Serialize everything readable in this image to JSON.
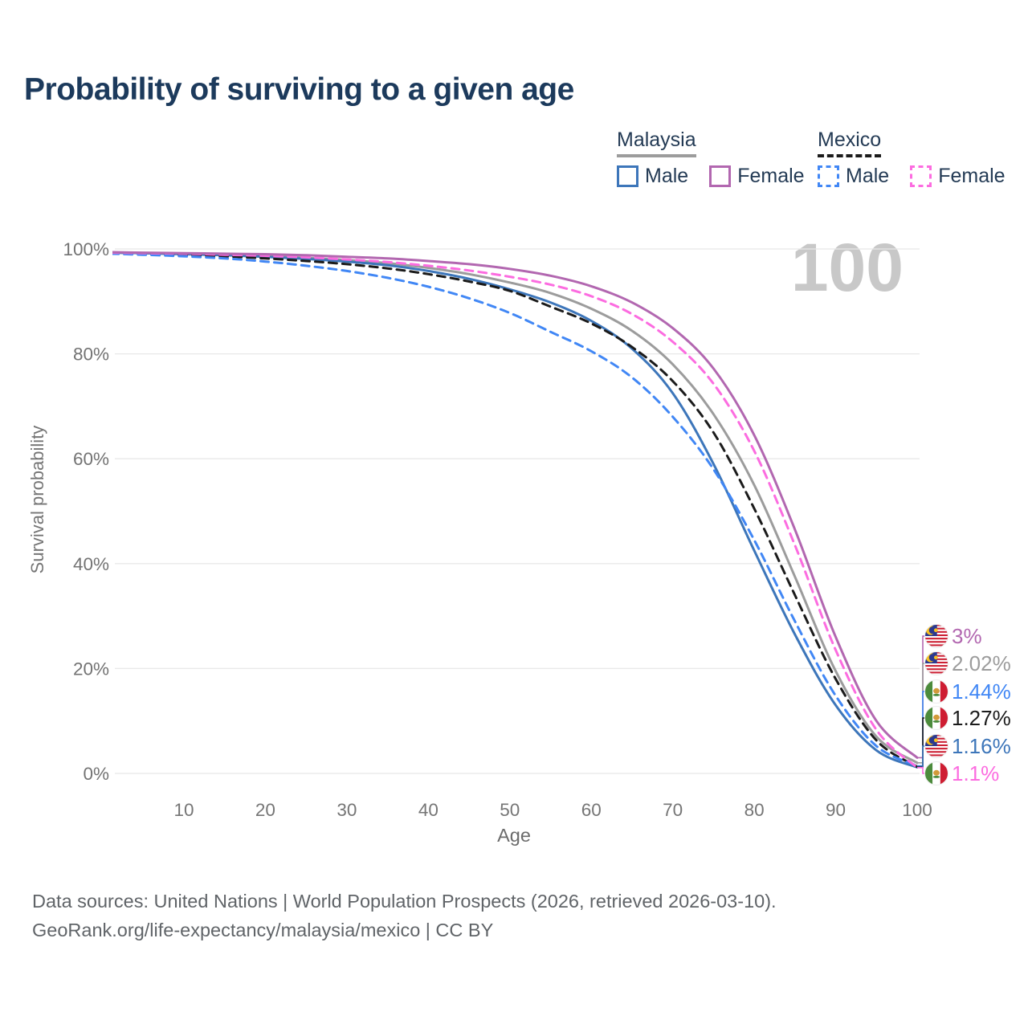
{
  "title": "Probability of surviving to a given age",
  "watermark": "100",
  "legend": {
    "groups": [
      {
        "label": "Malaysia",
        "underline_style": "solid",
        "underline_color": "#9c9c9c",
        "items": [
          {
            "label": "Male",
            "color": "#3d76ba",
            "dash": false
          },
          {
            "label": "Female",
            "color": "#b267b0",
            "dash": false
          }
        ]
      },
      {
        "label": "Mexico",
        "underline_style": "dashed",
        "underline_color": "#1b1b1b",
        "items": [
          {
            "label": "Male",
            "color": "#4187f5",
            "dash": true
          },
          {
            "label": "Female",
            "color": "#fc6ce0",
            "dash": true
          }
        ]
      }
    ]
  },
  "y_axis": {
    "label": "Survival probability",
    "ticks": [
      "100%",
      "80%",
      "60%",
      "40%",
      "20%",
      "0%"
    ]
  },
  "x_axis": {
    "label": "Age",
    "ticks": [
      "10",
      "20",
      "30",
      "40",
      "50",
      "60",
      "70",
      "80",
      "90",
      "100"
    ]
  },
  "footer": {
    "line1": "Data sources: United Nations | World Population Prospects (2026, retrieved 2026-03-10).",
    "line2": "GeoRank.org/life-expectancy/malaysia/mexico | CC BY"
  },
  "chart_data": {
    "type": "line",
    "title": "Probability of surviving to a given age",
    "xlabel": "Age",
    "ylabel": "Survival probability",
    "xlim": [
      1,
      100
    ],
    "ylim": [
      0,
      100
    ],
    "grid": "horizontal",
    "legend_position": "top-right",
    "x": [
      1,
      5,
      10,
      15,
      20,
      25,
      30,
      35,
      40,
      45,
      50,
      55,
      60,
      65,
      70,
      75,
      80,
      85,
      90,
      95,
      100
    ],
    "series": [
      {
        "name": "Malaysia — All",
        "country": "Malaysia",
        "group": "all",
        "color": "#9c9c9c",
        "style": "solid",
        "end_label": "2.02%",
        "values": [
          99.3,
          99.2,
          99.1,
          98.9,
          98.7,
          98.3,
          97.9,
          97.3,
          96.4,
          95.2,
          93.6,
          91.6,
          88.6,
          84.4,
          78.0,
          68.5,
          55.0,
          37.5,
          19.5,
          7.0,
          2.02
        ]
      },
      {
        "name": "Malaysia — Male",
        "country": "Malaysia",
        "group": "male",
        "color": "#3d76ba",
        "style": "solid",
        "end_label": "1.16%",
        "values": [
          99.3,
          99.2,
          99.0,
          98.8,
          98.5,
          98.1,
          97.6,
          96.9,
          95.8,
          94.3,
          92.3,
          89.8,
          86.3,
          81.0,
          72.5,
          59.0,
          42.5,
          26.5,
          13.0,
          4.4,
          1.16
        ]
      },
      {
        "name": "Mexico — All",
        "country": "Mexico",
        "group": "all",
        "color": "#1b1b1b",
        "style": "dashed",
        "end_label": "1.27%",
        "values": [
          99.2,
          99.1,
          98.9,
          98.6,
          98.2,
          97.7,
          97.1,
          96.3,
          95.2,
          93.8,
          92.0,
          89.0,
          85.8,
          81.3,
          74.8,
          65.0,
          50.5,
          34.0,
          18.0,
          6.3,
          1.27
        ]
      },
      {
        "name": "Mexico — Male",
        "country": "Mexico",
        "group": "male",
        "color": "#4187f5",
        "style": "dashed",
        "end_label": "1.44%",
        "values": [
          99.1,
          98.9,
          98.6,
          98.2,
          97.6,
          96.8,
          95.8,
          94.5,
          92.8,
          90.6,
          87.8,
          84.2,
          80.5,
          75.5,
          68.0,
          58.0,
          44.5,
          29.0,
          14.8,
          5.2,
          1.44
        ]
      },
      {
        "name": "Mexico — Female",
        "country": "Mexico",
        "group": "female",
        "color": "#fc6ce0",
        "style": "dashed",
        "end_label": "1.1%",
        "values": [
          99.3,
          99.2,
          99.1,
          98.9,
          98.7,
          98.4,
          98.0,
          97.5,
          96.8,
          95.9,
          94.7,
          93.2,
          91.0,
          87.6,
          82.3,
          74.3,
          61.5,
          43.5,
          23.5,
          8.3,
          1.1
        ]
      },
      {
        "name": "Malaysia — Female",
        "country": "Malaysia",
        "group": "female",
        "color": "#b267b0",
        "style": "solid",
        "end_label": "3%",
        "values": [
          99.4,
          99.3,
          99.2,
          99.1,
          99.0,
          98.8,
          98.5,
          98.2,
          97.7,
          97.1,
          96.2,
          94.9,
          92.9,
          89.8,
          84.9,
          77.2,
          64.5,
          46.5,
          26.0,
          10.0,
          3.0
        ]
      }
    ],
    "end_labels": [
      {
        "text": "3%",
        "flag": "malaysia",
        "series": "Malaysia — Female",
        "color": "#b267b0"
      },
      {
        "text": "2.02%",
        "flag": "malaysia",
        "series": "Malaysia — All",
        "color": "#9c9c9c"
      },
      {
        "text": "1.44%",
        "flag": "mexico",
        "series": "Mexico — Male",
        "color": "#4187f5"
      },
      {
        "text": "1.27%",
        "flag": "mexico",
        "series": "Mexico — All",
        "color": "#1b1b1b"
      },
      {
        "text": "1.16%",
        "flag": "malaysia",
        "series": "Malaysia — Male",
        "color": "#3d76ba"
      },
      {
        "text": "1.1%",
        "flag": "mexico",
        "series": "Mexico — Female",
        "color": "#fc6ce0"
      }
    ]
  }
}
